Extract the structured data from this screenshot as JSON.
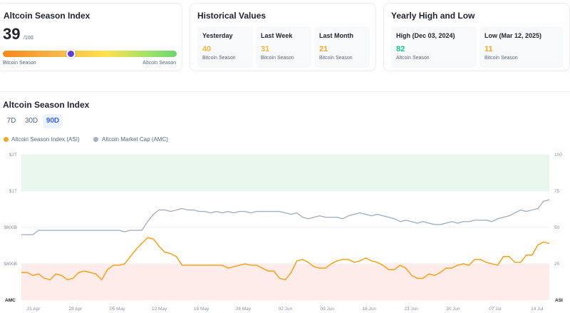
{
  "summary": {
    "title": "Altcoin Season Index",
    "value": "39",
    "value_suffix": "/100",
    "left_label": "Bitcoin Season",
    "right_label": "Altcoin Season",
    "index_level": 39
  },
  "historical": {
    "title": "Historical Values",
    "items": [
      {
        "label": "Yesterday",
        "value": "40",
        "desc": "Bitcoin Season",
        "color": "#f6b73c"
      },
      {
        "label": "Last Week",
        "value": "31",
        "desc": "Bitcoin Season",
        "color": "#f6b73c"
      },
      {
        "label": "Last Month",
        "value": "21",
        "desc": "Bitcoin Season",
        "color": "#f5a623"
      }
    ]
  },
  "yearly": {
    "title": "Yearly High and Low",
    "items": [
      {
        "label": "High (Dec 03, 2024)",
        "value": "82",
        "desc": "Altcoin Season",
        "color": "#16c784"
      },
      {
        "label": "Low (Mar 12, 2025)",
        "value": "11",
        "desc": "Bitcoin Season",
        "color": "#f5a623"
      }
    ]
  },
  "chart_section": {
    "title": "Altcoin Season Index",
    "tabs": [
      "7D",
      "30D",
      "90D"
    ],
    "active_tab": "90D",
    "legend": [
      {
        "label": "Altcoin Season Index (ASI)",
        "color": "#f5a623"
      },
      {
        "label": "Altcoin Market Cap (AMC)",
        "color": "#a6b0c3"
      }
    ]
  },
  "chart_data": {
    "type": "line",
    "x_ticks": [
      "21 Apr",
      "28 Apr",
      "05 May",
      "12 May",
      "19 May",
      "26 May",
      "02 Jun",
      "09 Jun",
      "16 Jun",
      "23 Jun",
      "30 Jun",
      "07 Jul",
      "14 Jul"
    ],
    "left_axis": {
      "label": "AMC",
      "ticks": [
        "$2T",
        "$1T",
        "$800B",
        "$400B"
      ]
    },
    "right_axis": {
      "label": "ASI",
      "ticks": [
        "100",
        "75",
        "50",
        "25"
      ],
      "ylim": [
        0,
        100
      ]
    },
    "bands": [
      {
        "from": 75,
        "to": 100,
        "color": "#e9f7ef"
      },
      {
        "from": 0,
        "to": 25,
        "color": "#fdecea"
      }
    ],
    "x_start": "2025-04-17",
    "series": [
      {
        "name": "Altcoin Season Index (ASI)",
        "axis": "right",
        "color": "#f5a623",
        "values": [
          19,
          19,
          17,
          18,
          15,
          14,
          18,
          17,
          14,
          15,
          19,
          20,
          19,
          18,
          14,
          21,
          24,
          24,
          25,
          30,
          35,
          39,
          43,
          42,
          37,
          33,
          32,
          30,
          24,
          24,
          24,
          24,
          24,
          24,
          24,
          24,
          22,
          23,
          24,
          25,
          24,
          24,
          22,
          20,
          20,
          15,
          14,
          19,
          27,
          28,
          26,
          23,
          22,
          22,
          25,
          27,
          28,
          28,
          26,
          27,
          29,
          27,
          26,
          24,
          21,
          21,
          24,
          22,
          17,
          15,
          15,
          18,
          17,
          19,
          22,
          22,
          24,
          25,
          24,
          28,
          28,
          26,
          25,
          24,
          30,
          30,
          26,
          26,
          31,
          31,
          38,
          40,
          39
        ]
      },
      {
        "name": "Altcoin Market Cap (AMC)",
        "axis": "right",
        "color": "#a6b0c3",
        "values": [
          45,
          45,
          45,
          48,
          48,
          48,
          48,
          48,
          48,
          48,
          48,
          48,
          48,
          48,
          48,
          48,
          48,
          48,
          47,
          48,
          48,
          48,
          54,
          59,
          62,
          62,
          61,
          62,
          63,
          62,
          62,
          61,
          61,
          60,
          61,
          60,
          61,
          60,
          61,
          61,
          60,
          61,
          61,
          61,
          61,
          61,
          60,
          59,
          60,
          57,
          56,
          57,
          58,
          57,
          57,
          57,
          56,
          58,
          59,
          60,
          59,
          58,
          59,
          58,
          57,
          56,
          54,
          55,
          54,
          53,
          54,
          53,
          52,
          52,
          53,
          54,
          53,
          54,
          54,
          55,
          55,
          55,
          54,
          56,
          57,
          58,
          60,
          62,
          61,
          62,
          63,
          68,
          69
        ]
      }
    ]
  }
}
